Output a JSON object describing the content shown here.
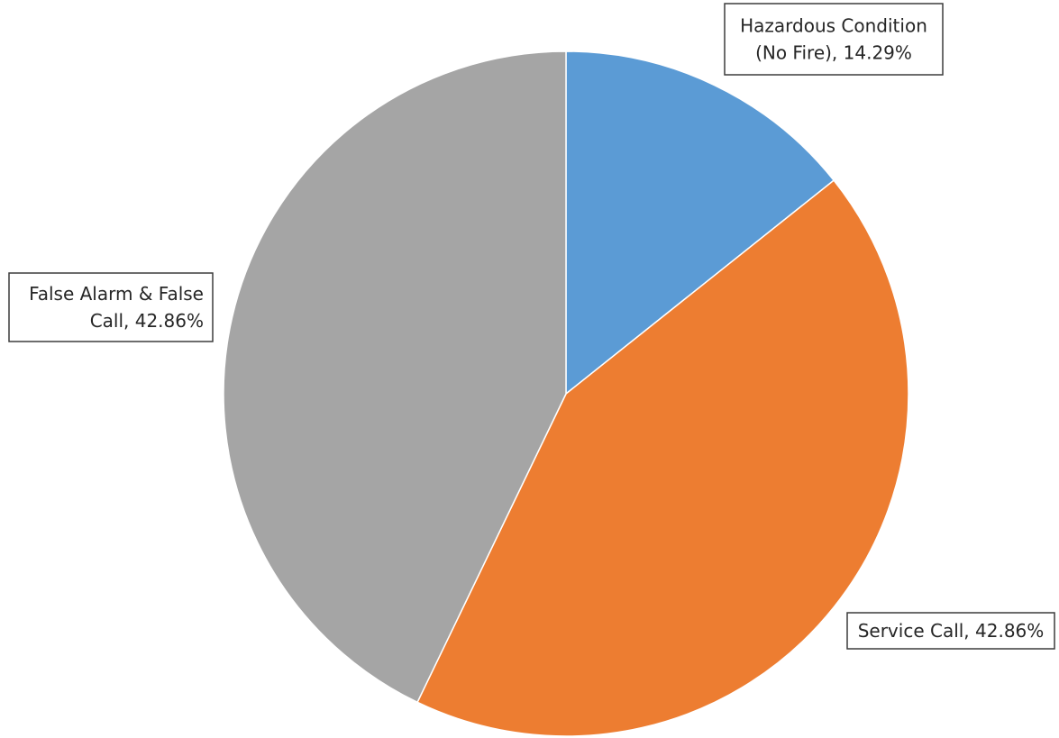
{
  "chart_data": {
    "type": "pie",
    "title": "",
    "start_angle_deg": 0,
    "direction": "clockwise",
    "slices": [
      {
        "name": "Hazardous Condition (No Fire)",
        "value": 14.29,
        "label_lines": [
          "Hazardous Condition",
          "(No Fire), 14.29%"
        ],
        "color": "#5b9bd5"
      },
      {
        "name": "Service Call",
        "value": 42.86,
        "label_lines": [
          "Service Call, 42.86%"
        ],
        "color": "#ed7d31"
      },
      {
        "name": "False Alarm & False Call",
        "value": 42.86,
        "label_lines": [
          "False Alarm & False",
          "Call, 42.86%"
        ],
        "color": "#a5a5a5"
      }
    ]
  }
}
